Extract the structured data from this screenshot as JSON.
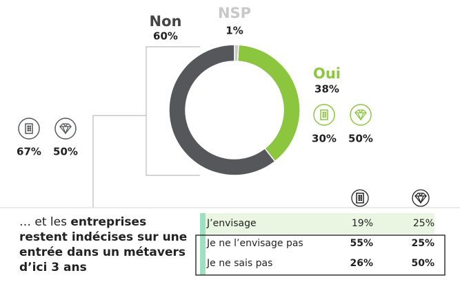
{
  "chart_data": {
    "type": "pie",
    "categories": [
      "NSP",
      "Oui",
      "Non"
    ],
    "values": [
      1,
      38,
      60
    ],
    "value_labels": [
      "1%",
      "38%",
      "60%"
    ],
    "colors": [
      "#c8c8c8",
      "#8cc63f",
      "#55575a"
    ]
  },
  "non_stats": [
    "67%",
    "50%"
  ],
  "oui_stats": [
    "30%",
    "50%"
  ],
  "intro": {
    "prefix": "… et les ",
    "lines": [
      "entreprises",
      "restent indécises sur une",
      "entrée dans un métavers",
      "d’ici 3 ans"
    ]
  },
  "table": {
    "rows": [
      [
        "J’envisage",
        "19%",
        "25%"
      ],
      [
        "Je ne l’envisage pas",
        "55%",
        "25%"
      ],
      [
        "Je ne sais pas",
        "26%",
        "50%"
      ]
    ]
  }
}
